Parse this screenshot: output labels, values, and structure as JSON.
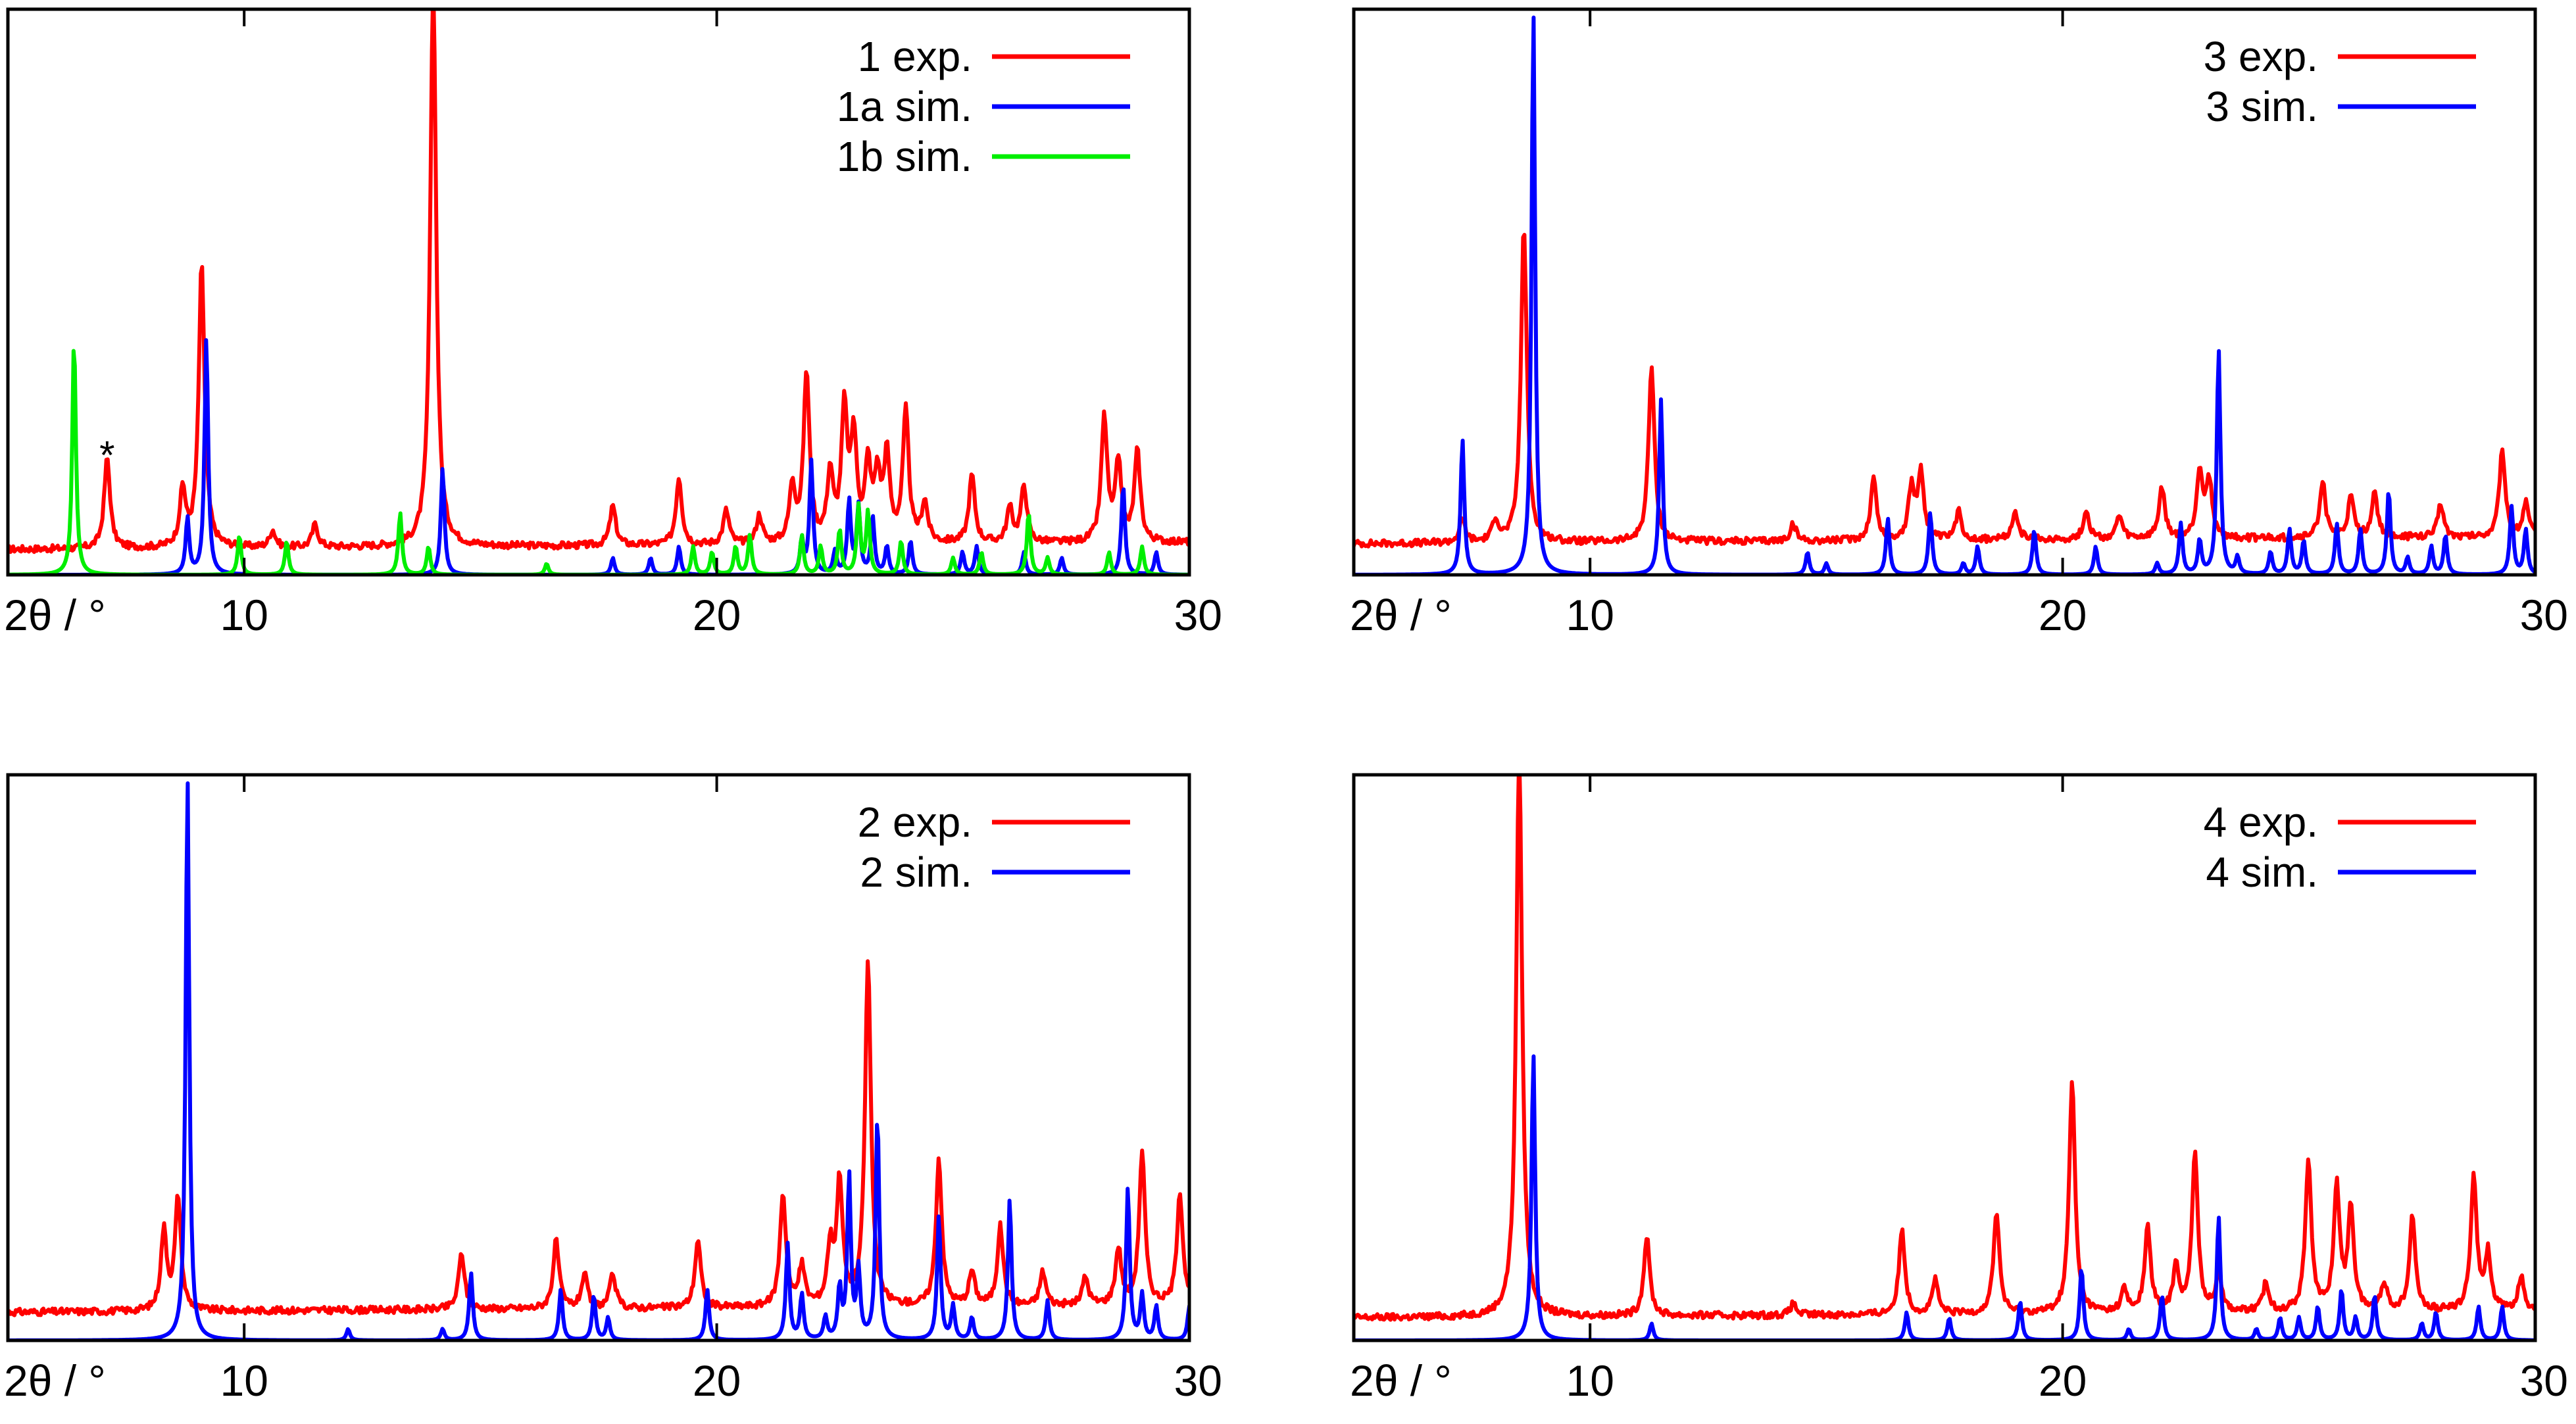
{
  "colors": {
    "exp": "#ff0000",
    "sim_a": "#0000ff",
    "sim_b": "#00ee00",
    "axis": "#000000"
  },
  "chart_data": [
    {
      "type": "line",
      "panel": "top-left",
      "xlim": [
        5,
        30
      ],
      "ylim": [
        0,
        1
      ],
      "xticks": [
        10,
        20,
        30
      ],
      "xlabel": "2θ / °",
      "legend_position": "top-right",
      "annotation": {
        "text": "*",
        "x": 7.1,
        "y": 0.16
      },
      "series": [
        {
          "name": "1 exp.",
          "color": "#ff0000",
          "baseline": 0.045,
          "peaks": [
            [
              7.1,
              0.16
            ],
            [
              8.7,
              0.1
            ],
            [
              9.1,
              0.5
            ],
            [
              10.6,
              0.03
            ],
            [
              11.5,
              0.04
            ],
            [
              14.0,
              1.0
            ],
            [
              17.8,
              0.07
            ],
            [
              19.2,
              0.12
            ],
            [
              20.2,
              0.06
            ],
            [
              20.9,
              0.05
            ],
            [
              21.6,
              0.1
            ],
            [
              21.9,
              0.3
            ],
            [
              22.4,
              0.12
            ],
            [
              22.7,
              0.23
            ],
            [
              22.9,
              0.18
            ],
            [
              23.2,
              0.13
            ],
            [
              23.4,
              0.11
            ],
            [
              23.6,
              0.15
            ],
            [
              24.0,
              0.23
            ],
            [
              24.4,
              0.07
            ],
            [
              25.4,
              0.12
            ],
            [
              26.2,
              0.06
            ],
            [
              26.5,
              0.1
            ],
            [
              28.2,
              0.22
            ],
            [
              28.5,
              0.14
            ],
            [
              28.9,
              0.16
            ]
          ]
        },
        {
          "name": "1a sim.",
          "color": "#0000ff",
          "baseline": 0.0,
          "peaks": [
            [
              8.8,
              0.1
            ],
            [
              9.2,
              0.42
            ],
            [
              14.2,
              0.19
            ],
            [
              17.8,
              0.03
            ],
            [
              18.6,
              0.03
            ],
            [
              19.2,
              0.05
            ],
            [
              21.8,
              0.06
            ],
            [
              22.0,
              0.2
            ],
            [
              22.5,
              0.04
            ],
            [
              22.8,
              0.13
            ],
            [
              23.0,
              0.12
            ],
            [
              23.3,
              0.1
            ],
            [
              23.6,
              0.05
            ],
            [
              24.1,
              0.06
            ],
            [
              25.2,
              0.04
            ],
            [
              25.5,
              0.05
            ],
            [
              26.5,
              0.04
            ],
            [
              27.3,
              0.03
            ],
            [
              28.6,
              0.16
            ],
            [
              29.3,
              0.04
            ]
          ]
        },
        {
          "name": "1b sim.",
          "color": "#00ee00",
          "baseline": 0.0,
          "peaks": [
            [
              6.4,
              0.42
            ],
            [
              9.9,
              0.07
            ],
            [
              10.9,
              0.06
            ],
            [
              13.3,
              0.11
            ],
            [
              13.9,
              0.05
            ],
            [
              16.4,
              0.02
            ],
            [
              19.5,
              0.05
            ],
            [
              19.9,
              0.04
            ],
            [
              20.4,
              0.05
            ],
            [
              20.7,
              0.07
            ],
            [
              21.8,
              0.07
            ],
            [
              22.2,
              0.05
            ],
            [
              22.6,
              0.08
            ],
            [
              23.0,
              0.12
            ],
            [
              23.2,
              0.11
            ],
            [
              23.9,
              0.06
            ],
            [
              25.0,
              0.03
            ],
            [
              25.6,
              0.04
            ],
            [
              26.6,
              0.11
            ],
            [
              27.0,
              0.03
            ],
            [
              28.3,
              0.04
            ],
            [
              29.0,
              0.05
            ]
          ]
        }
      ]
    },
    {
      "type": "line",
      "panel": "top-right",
      "xlim": [
        5,
        30
      ],
      "ylim": [
        0,
        1
      ],
      "xticks": [
        10,
        20,
        30
      ],
      "xlabel": "2θ / °",
      "legend_position": "top-right",
      "series": [
        {
          "name": "3 exp.",
          "color": "#ff0000",
          "baseline": 0.055,
          "peaks": [
            [
              7.3,
              0.04
            ],
            [
              8.0,
              0.04
            ],
            [
              8.6,
              0.56
            ],
            [
              11.3,
              0.31
            ],
            [
              14.3,
              0.03
            ],
            [
              16.0,
              0.11
            ],
            [
              16.8,
              0.09
            ],
            [
              17.0,
              0.12
            ],
            [
              17.8,
              0.05
            ],
            [
              19.0,
              0.05
            ],
            [
              20.5,
              0.05
            ],
            [
              21.2,
              0.04
            ],
            [
              22.1,
              0.09
            ],
            [
              22.9,
              0.12
            ],
            [
              23.1,
              0.1
            ],
            [
              25.5,
              0.1
            ],
            [
              26.1,
              0.07
            ],
            [
              26.6,
              0.08
            ],
            [
              28.0,
              0.06
            ],
            [
              29.3,
              0.15
            ],
            [
              29.8,
              0.06
            ]
          ]
        },
        {
          "name": "3 sim.",
          "color": "#0000ff",
          "baseline": 0.0,
          "peaks": [
            [
              7.3,
              0.24
            ],
            [
              8.8,
              1.0
            ],
            [
              11.5,
              0.31
            ],
            [
              14.6,
              0.04
            ],
            [
              15.0,
              0.02
            ],
            [
              16.3,
              0.1
            ],
            [
              17.2,
              0.11
            ],
            [
              17.9,
              0.02
            ],
            [
              18.2,
              0.05
            ],
            [
              19.4,
              0.08
            ],
            [
              20.7,
              0.05
            ],
            [
              22.0,
              0.02
            ],
            [
              22.5,
              0.09
            ],
            [
              22.9,
              0.06
            ],
            [
              23.3,
              0.4
            ],
            [
              23.7,
              0.03
            ],
            [
              24.4,
              0.04
            ],
            [
              24.8,
              0.08
            ],
            [
              25.1,
              0.06
            ],
            [
              25.8,
              0.09
            ],
            [
              26.3,
              0.08
            ],
            [
              26.9,
              0.15
            ],
            [
              27.3,
              0.03
            ],
            [
              27.8,
              0.05
            ],
            [
              28.1,
              0.07
            ],
            [
              29.5,
              0.12
            ],
            [
              29.8,
              0.08
            ]
          ]
        }
      ]
    },
    {
      "type": "line",
      "panel": "bottom-left",
      "xlim": [
        5,
        30
      ],
      "ylim": [
        0,
        1
      ],
      "xticks": [
        10,
        20,
        30
      ],
      "xlabel": "2θ / °",
      "legend_position": "top-right",
      "series": [
        {
          "name": "2 exp.",
          "color": "#ff0000",
          "baseline": 0.05,
          "peaks": [
            [
              8.3,
              0.14
            ],
            [
              8.6,
              0.2
            ],
            [
              14.6,
              0.1
            ],
            [
              16.6,
              0.12
            ],
            [
              17.2,
              0.06
            ],
            [
              17.8,
              0.06
            ],
            [
              19.6,
              0.12
            ],
            [
              21.4,
              0.2
            ],
            [
              21.8,
              0.07
            ],
            [
              22.4,
              0.1
            ],
            [
              22.6,
              0.22
            ],
            [
              23.2,
              0.61
            ],
            [
              24.7,
              0.26
            ],
            [
              25.4,
              0.06
            ],
            [
              26.0,
              0.14
            ],
            [
              26.9,
              0.06
            ],
            [
              27.8,
              0.05
            ],
            [
              28.5,
              0.1
            ],
            [
              29.0,
              0.27
            ],
            [
              29.8,
              0.2
            ]
          ]
        },
        {
          "name": "2 sim.",
          "color": "#0000ff",
          "baseline": 0.0,
          "peaks": [
            [
              8.8,
              1.0
            ],
            [
              12.2,
              0.02
            ],
            [
              14.2,
              0.02
            ],
            [
              14.8,
              0.12
            ],
            [
              16.7,
              0.09
            ],
            [
              17.4,
              0.08
            ],
            [
              17.7,
              0.04
            ],
            [
              19.8,
              0.09
            ],
            [
              21.5,
              0.17
            ],
            [
              21.8,
              0.08
            ],
            [
              22.3,
              0.04
            ],
            [
              22.6,
              0.09
            ],
            [
              22.8,
              0.29
            ],
            [
              23.0,
              0.12
            ],
            [
              23.4,
              0.4
            ],
            [
              24.7,
              0.22
            ],
            [
              25.0,
              0.06
            ],
            [
              25.4,
              0.04
            ],
            [
              26.2,
              0.25
            ],
            [
              27.0,
              0.07
            ],
            [
              28.7,
              0.27
            ],
            [
              29.0,
              0.08
            ],
            [
              29.3,
              0.06
            ],
            [
              30.0,
              0.06
            ]
          ]
        }
      ]
    },
    {
      "type": "line",
      "panel": "bottom-right",
      "xlim": [
        5,
        30
      ],
      "ylim": [
        0,
        1
      ],
      "xticks": [
        10,
        20,
        30
      ],
      "xlabel": "2θ / °",
      "legend_position": "top-right",
      "series": [
        {
          "name": "4 exp.",
          "color": "#ff0000",
          "baseline": 0.04,
          "peaks": [
            [
              8.5,
              1.0
            ],
            [
              11.2,
              0.14
            ],
            [
              14.3,
              0.02
            ],
            [
              16.6,
              0.15
            ],
            [
              17.3,
              0.06
            ],
            [
              18.6,
              0.18
            ],
            [
              20.2,
              0.41
            ],
            [
              21.3,
              0.04
            ],
            [
              21.8,
              0.15
            ],
            [
              22.4,
              0.08
            ],
            [
              22.8,
              0.28
            ],
            [
              23.3,
              0.07
            ],
            [
              24.3,
              0.05
            ],
            [
              25.2,
              0.27
            ],
            [
              25.8,
              0.22
            ],
            [
              26.1,
              0.18
            ],
            [
              26.8,
              0.05
            ],
            [
              27.4,
              0.17
            ],
            [
              28.7,
              0.24
            ],
            [
              29.0,
              0.1
            ],
            [
              29.7,
              0.06
            ]
          ]
        },
        {
          "name": "4 sim.",
          "color": "#0000ff",
          "baseline": 0.0,
          "peaks": [
            [
              8.8,
              0.51
            ],
            [
              11.3,
              0.03
            ],
            [
              16.7,
              0.05
            ],
            [
              17.6,
              0.04
            ],
            [
              19.1,
              0.07
            ],
            [
              20.4,
              0.13
            ],
            [
              21.4,
              0.02
            ],
            [
              22.1,
              0.08
            ],
            [
              23.3,
              0.22
            ],
            [
              24.1,
              0.02
            ],
            [
              24.6,
              0.04
            ],
            [
              25.0,
              0.04
            ],
            [
              25.4,
              0.06
            ],
            [
              25.9,
              0.09
            ],
            [
              26.2,
              0.04
            ],
            [
              26.6,
              0.08
            ],
            [
              27.6,
              0.03
            ],
            [
              27.9,
              0.05
            ],
            [
              28.8,
              0.06
            ],
            [
              29.3,
              0.06
            ]
          ]
        }
      ]
    }
  ]
}
